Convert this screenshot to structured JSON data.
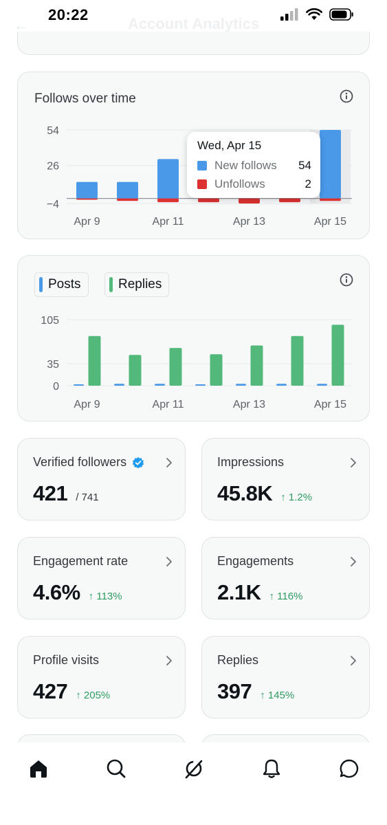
{
  "status_bar": {
    "time": "20:22"
  },
  "header": {
    "title": "Account Analytics",
    "back_icon": "back-arrow-icon"
  },
  "follows_card": {
    "title": "Follows over time",
    "info_icon": "info-icon",
    "tooltip": {
      "date": "Wed, Apr 15",
      "rows": [
        {
          "label": "New follows",
          "value": "54",
          "color": "#4a99e9"
        },
        {
          "label": "Unfollows",
          "value": "2",
          "color": "#dc3232"
        }
      ]
    }
  },
  "activity_card": {
    "legend": [
      {
        "label": "Posts",
        "color": "#4a99e9"
      },
      {
        "label": "Replies",
        "color": "#52b97b"
      }
    ],
    "info_icon": "info-icon"
  },
  "chart_data": [
    {
      "type": "bar",
      "title": "Follows over time",
      "categories": [
        "Apr 9",
        "Apr 10",
        "Apr 11",
        "Apr 12",
        "Apr 13",
        "Apr 14",
        "Apr 15"
      ],
      "x_tick_labels": [
        "Apr 9",
        "Apr 11",
        "Apr 13",
        "Apr 15"
      ],
      "y_tick_labels": [
        "54",
        "26",
        "−4"
      ],
      "y_ticks": [
        54,
        26,
        -4
      ],
      "ylim": [
        -4,
        54
      ],
      "grid": true,
      "series": [
        {
          "name": "New follows",
          "color": "#4a99e9",
          "values": [
            13,
            13,
            31,
            0,
            0,
            0,
            54
          ]
        },
        {
          "name": "Unfollows",
          "color": "#dc3232",
          "values": [
            -1,
            -2,
            -3,
            -3,
            -4,
            -3,
            -2
          ]
        }
      ],
      "highlighted_category": "Apr 15"
    },
    {
      "type": "bar",
      "categories": [
        "Apr 9",
        "Apr 10",
        "Apr 11",
        "Apr 12",
        "Apr 13",
        "Apr 14",
        "Apr 15"
      ],
      "x_tick_labels": [
        "Apr 9",
        "Apr 11",
        "Apr 13",
        "Apr 15"
      ],
      "y_tick_labels": [
        "105",
        "35",
        "0"
      ],
      "y_ticks": [
        105,
        35,
        0
      ],
      "ylim": [
        0,
        105
      ],
      "grid": true,
      "series": [
        {
          "name": "Posts",
          "color": "#4a99e9",
          "values": [
            2,
            3,
            3,
            1,
            3,
            3,
            3
          ]
        },
        {
          "name": "Replies",
          "color": "#52b97b",
          "values": [
            79,
            49,
            60,
            50,
            64,
            79,
            97
          ]
        }
      ]
    }
  ],
  "stats": [
    {
      "title": "Verified followers",
      "value": "421",
      "sub": "/ 741",
      "delta": "",
      "verified": true
    },
    {
      "title": "Impressions",
      "value": "45.8K",
      "sub": "",
      "delta": "↑ 1.2%"
    },
    {
      "title": "Engagement rate",
      "value": "4.6%",
      "sub": "",
      "delta": "↑ 113%"
    },
    {
      "title": "Engagements",
      "value": "2.1K",
      "sub": "",
      "delta": "↑ 116%"
    },
    {
      "title": "Profile visits",
      "value": "427",
      "sub": "",
      "delta": "↑ 205%"
    },
    {
      "title": "Replies",
      "value": "397",
      "sub": "",
      "delta": "↑ 145%"
    }
  ],
  "tab_bar": [
    {
      "name": "home",
      "icon": "home-icon",
      "active": true
    },
    {
      "name": "search",
      "icon": "search-icon"
    },
    {
      "name": "grok",
      "icon": "grok-icon"
    },
    {
      "name": "notifications",
      "icon": "bell-icon"
    },
    {
      "name": "messages",
      "icon": "messages-icon"
    }
  ],
  "colors": {
    "accent": "#1d9bf0",
    "positive": "#2f9a61",
    "card_bg": "#f7f9f9",
    "border": "#dfe3e6"
  }
}
